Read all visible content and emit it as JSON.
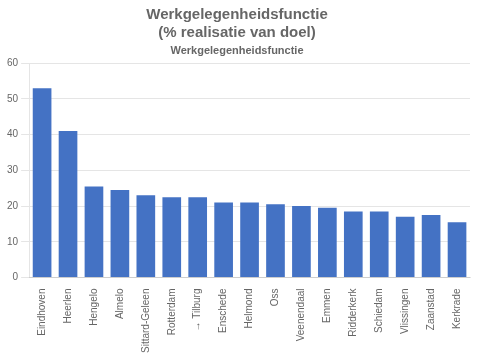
{
  "chart_data": {
    "type": "bar",
    "title": "Werkgelegenheidsfunctie\n(% realisatie van doel)",
    "subtitle": "Werkgelegenheidsfunctie",
    "categories": [
      "Eindhoven",
      "Heerlen",
      "Hengelo",
      "Almelo",
      "Sittard-Geleen",
      "Rotterdam",
      "→ Tilburg",
      "Enschede",
      "Helmond",
      "Oss",
      "Veenendaal",
      "Emmen",
      "Ridderkerk",
      "Schiedam",
      "Vlissingen",
      "Zaanstad",
      "Kerkrade"
    ],
    "values": [
      53,
      41,
      25.5,
      24.5,
      23,
      22.5,
      22.5,
      21,
      21,
      20.5,
      20,
      19.5,
      18.5,
      18.5,
      17,
      17.5,
      15.5
    ],
    "color": "#4472C4",
    "ylim": [
      0,
      60
    ],
    "yticks": [
      0,
      10,
      20,
      30,
      40,
      50,
      60
    ],
    "grid": true
  }
}
